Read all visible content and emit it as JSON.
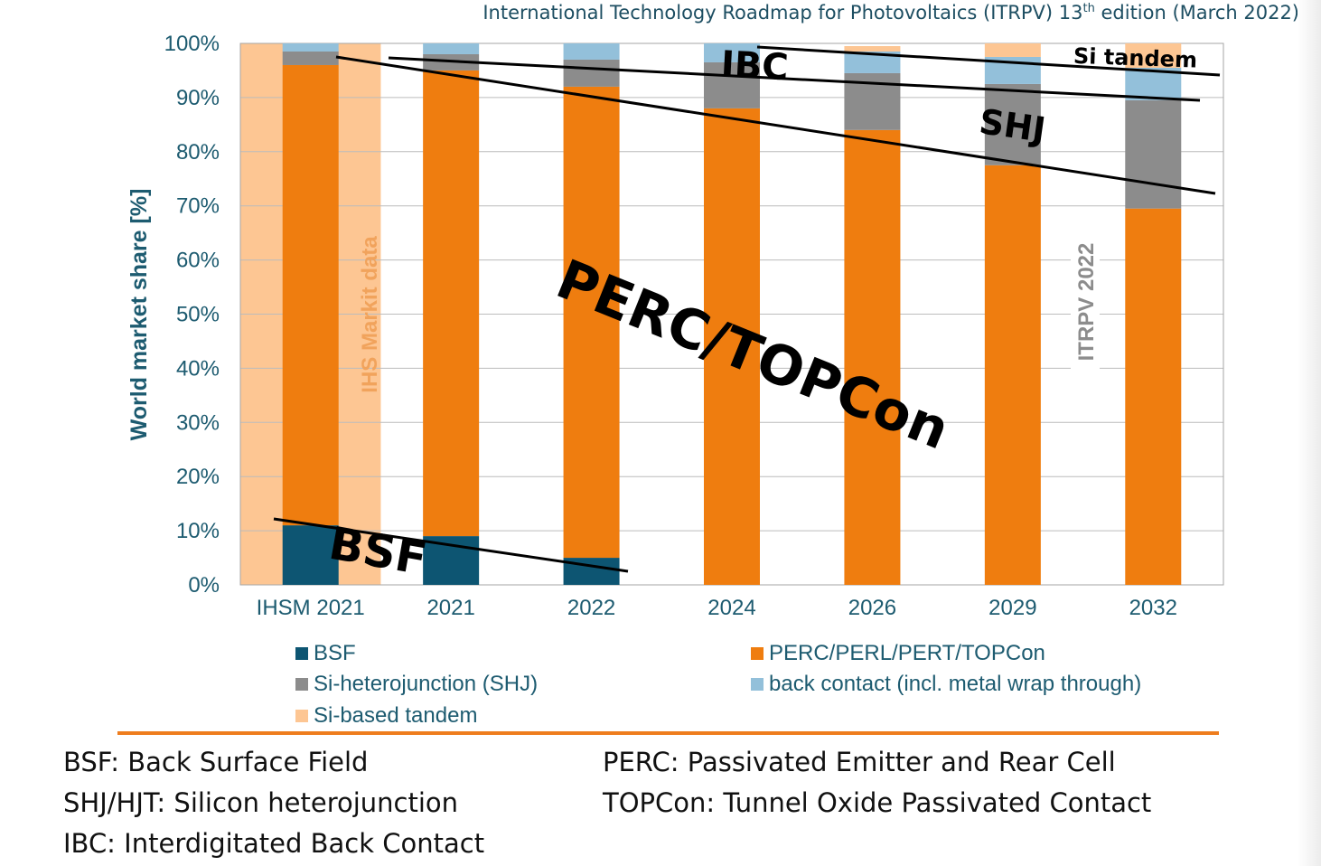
{
  "header": {
    "title_main": "International Technology Roadmap for Photovoltaics (ITRPV) 13",
    "title_sup": "th",
    "title_tail": " edition (March 2022)"
  },
  "chart_data": {
    "type": "bar",
    "stacked": true,
    "ylabel": "World market share [%]",
    "ylim": [
      0,
      100
    ],
    "yticks": [
      "0%",
      "10%",
      "20%",
      "30%",
      "40%",
      "50%",
      "60%",
      "70%",
      "80%",
      "90%",
      "100%"
    ],
    "categories": [
      "IHSM 2021",
      "2021",
      "2022",
      "2024",
      "2026",
      "2029",
      "2032"
    ],
    "grid": "horizontal",
    "legend_position": "bottom",
    "series": [
      {
        "name": "BSF",
        "color": "#0d5572",
        "values": [
          11,
          9,
          5,
          0,
          0,
          0,
          0
        ]
      },
      {
        "name": "PERC/PERL/PERT/TOPCon",
        "color": "#ef7d0f",
        "values": [
          85,
          86,
          87,
          88,
          84,
          77.5,
          69.5
        ]
      },
      {
        "name": "Si-heterojunction (SHJ)",
        "color": "#8c8c8c",
        "values": [
          2.5,
          3,
          5,
          8.5,
          10.5,
          15,
          20
        ]
      },
      {
        "name": "back contact (incl. metal wrap through)",
        "color": "#93c0da",
        "values": [
          1.5,
          2,
          3,
          3.5,
          4,
          5,
          6
        ]
      },
      {
        "name": "Si-based tandem",
        "color": "#fdc693",
        "values": [
          0,
          0,
          0,
          0,
          1,
          2.5,
          4.5
        ]
      }
    ],
    "annotations": {
      "ihs_note": "IHS Markit data",
      "itrpv_note": "ITRPV 2022",
      "labels": [
        "IBC",
        "Si tandem",
        "SHJ",
        "PERC/TOPCon",
        "BSF"
      ]
    }
  },
  "legend": {
    "items": [
      {
        "label": "BSF",
        "color": "#0d5572"
      },
      {
        "label": "PERC/PERL/PERT/TOPCon",
        "color": "#ef7d0f"
      },
      {
        "label": "Si-heterojunction (SHJ)",
        "color": "#8c8c8c"
      },
      {
        "label": "back contact (incl. metal wrap through)",
        "color": "#93c0da"
      },
      {
        "label": "Si-based tandem",
        "color": "#fdc693"
      }
    ]
  },
  "definitions": {
    "bsf": "BSF: Back Surface Field",
    "shj": "SHJ/HJT: Silicon heterojunction",
    "ibc": "IBC: Interdigitated Back Contact",
    "perc": "PERC: Passivated Emitter and Rear Cell",
    "topcon": "TOPCon: Tunnel Oxide Passivated Contact"
  }
}
